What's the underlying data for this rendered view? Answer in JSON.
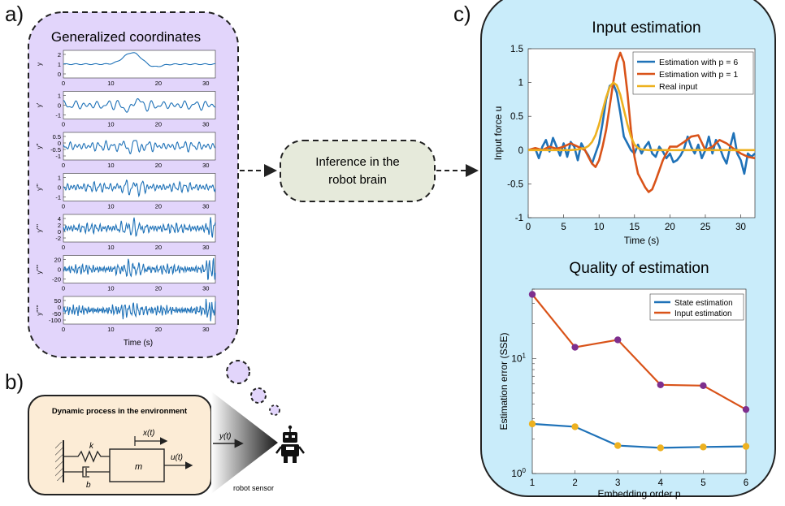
{
  "panel_labels": {
    "a": "a)",
    "b": "b)",
    "c": "c)"
  },
  "colors": {
    "lavender": "#e2d5fb",
    "beige": "#fcecd6",
    "sky": "#c9ecfa",
    "olive_box": "#e6eadb",
    "blue": "#1f72b8",
    "orange": "#d95319",
    "yellow": "#edb120",
    "purple": "#7e2f8e"
  },
  "panel_a": {
    "title": "Generalized coordinates",
    "xlabel": "Time (s)",
    "xticks": [
      "0",
      "10",
      "20",
      "30"
    ],
    "plots": [
      {
        "ylabel": "y",
        "yticks": [
          "2",
          "1",
          "0"
        ]
      },
      {
        "ylabel": "y'",
        "yticks": [
          "1",
          "0",
          "-1"
        ]
      },
      {
        "ylabel": "y''",
        "yticks": [
          "0.5",
          "0",
          "-0.5",
          "-1"
        ]
      },
      {
        "ylabel": "y'''",
        "yticks": [
          "1",
          "0",
          "-1"
        ]
      },
      {
        "ylabel": "y''''",
        "yticks": [
          "4",
          "2",
          "0",
          "-2"
        ]
      },
      {
        "ylabel": "y'''''",
        "yticks": [
          "20",
          "0",
          "-20"
        ]
      },
      {
        "ylabel": "y''''''",
        "yticks": [
          "50",
          "0",
          "-50",
          "-100"
        ]
      }
    ]
  },
  "inference_box": {
    "text_line1": "Inference in the",
    "text_line2": "robot brain"
  },
  "panel_b": {
    "title": "Dynamic process in the environment",
    "label_k": "k",
    "label_b": "b",
    "label_m": "m",
    "label_x": "x(t)",
    "label_u": "u(t)",
    "label_y": "y(t)",
    "sensor_label": "robot sensor"
  },
  "chart_data": [
    {
      "type": "line",
      "title": "Input estimation",
      "xlabel": "Time (s)",
      "ylabel": "Input force u",
      "xlim": [
        0,
        32
      ],
      "ylim": [
        -1,
        1.5
      ],
      "xticks": [
        0,
        5,
        10,
        15,
        20,
        25,
        30
      ],
      "yticks": [
        -1,
        -0.5,
        0,
        0.5,
        1,
        1.5
      ],
      "legend_position": "top-right",
      "series": [
        {
          "name": "Estimation with p = 6",
          "color": "#1f72b8",
          "x": [
            0,
            1,
            1.5,
            2,
            2.5,
            3,
            3.5,
            4,
            4.5,
            5,
            5.5,
            6,
            6.5,
            7,
            7.5,
            8,
            8.5,
            9,
            9.5,
            10,
            10.5,
            11,
            11.5,
            12,
            12.5,
            13,
            13.5,
            14,
            14.5,
            15,
            15.5,
            16,
            16.5,
            17,
            17.5,
            18,
            18.5,
            19,
            19.5,
            20,
            20.5,
            21,
            21.5,
            22,
            22.5,
            23,
            23.5,
            24,
            24.5,
            25,
            25.5,
            26,
            26.5,
            27,
            27.5,
            28,
            28.5,
            29,
            29.5,
            30,
            30.5,
            31,
            31.5,
            32
          ],
          "y": [
            0,
            0.02,
            -0.12,
            0.05,
            0.15,
            -0.02,
            0.18,
            0.05,
            -0.08,
            0.1,
            -0.1,
            0.12,
            0.05,
            -0.15,
            0.1,
            0.0,
            -0.08,
            -0.2,
            -0.05,
            0.1,
            0.4,
            0.75,
            0.95,
            0.98,
            0.85,
            0.55,
            0.2,
            0.1,
            0.0,
            -0.05,
            0.08,
            -0.05,
            0.05,
            0.12,
            -0.05,
            -0.1,
            0.05,
            -0.02,
            -0.12,
            -0.05,
            -0.18,
            -0.15,
            -0.08,
            0.02,
            0.2,
            0.05,
            -0.05,
            0.08,
            -0.12,
            0.0,
            0.2,
            -0.05,
            0.15,
            0.05,
            -0.1,
            -0.2,
            0.05,
            0.25,
            -0.05,
            -0.15,
            -0.35,
            -0.05,
            -0.1,
            -0.05
          ]
        },
        {
          "name": "Estimation with p = 1",
          "color": "#d95319",
          "x": [
            0,
            1,
            2,
            3,
            4,
            5,
            6,
            7,
            8,
            8.5,
            9,
            9.5,
            10,
            10.5,
            11,
            11.5,
            12,
            12.5,
            13,
            13.5,
            14,
            14.5,
            15,
            15.5,
            16,
            16.5,
            17,
            17.5,
            18,
            18.5,
            19,
            19.5,
            20,
            21,
            22,
            23,
            24,
            25,
            26,
            27,
            28,
            29,
            30,
            31,
            32
          ],
          "y": [
            0,
            0.03,
            0.0,
            0.05,
            0.02,
            0.05,
            0.1,
            0.05,
            0.0,
            -0.1,
            -0.2,
            -0.25,
            -0.15,
            0.05,
            0.3,
            0.65,
            1.0,
            1.3,
            1.44,
            1.3,
            0.85,
            0.3,
            -0.1,
            -0.35,
            -0.45,
            -0.55,
            -0.62,
            -0.58,
            -0.45,
            -0.3,
            -0.15,
            -0.05,
            0.05,
            0.05,
            0.12,
            0.2,
            0.22,
            0.0,
            0.05,
            0.15,
            0.1,
            0.02,
            -0.05,
            -0.1,
            -0.12
          ]
        },
        {
          "name": "Real input",
          "color": "#edb120",
          "x": [
            0,
            6,
            7,
            8,
            8.5,
            9,
            9.5,
            10,
            10.5,
            11,
            11.5,
            12,
            12.5,
            13,
            13.5,
            14,
            14.5,
            15,
            15.5,
            16,
            17,
            18,
            32
          ],
          "y": [
            0,
            0,
            0.01,
            0.03,
            0.06,
            0.12,
            0.22,
            0.38,
            0.58,
            0.78,
            0.93,
            1.0,
            0.96,
            0.82,
            0.6,
            0.38,
            0.2,
            0.08,
            0.03,
            0.01,
            0,
            0,
            0
          ]
        }
      ]
    },
    {
      "type": "line",
      "title": "Quality of estimation",
      "xlabel": "Embedding order p",
      "ylabel": "Estimation error (SSE)",
      "yscale": "log",
      "xlim": [
        1,
        6
      ],
      "ylim": [
        1,
        40
      ],
      "xticks": [
        1,
        2,
        3,
        4,
        5,
        6
      ],
      "yticks_labels": [
        "10^0",
        "10^1"
      ],
      "legend_position": "top-right",
      "series": [
        {
          "name": "State estimation",
          "color": "#1f72b8",
          "marker_color": "#edb120",
          "x": [
            1,
            2,
            3,
            4,
            5,
            6
          ],
          "y": [
            2.7,
            2.55,
            1.75,
            1.67,
            1.7,
            1.72
          ]
        },
        {
          "name": "Input estimation",
          "color": "#d95319",
          "marker_color": "#7e2f8e",
          "x": [
            1,
            2,
            3,
            4,
            5,
            6
          ],
          "y": [
            36,
            12.5,
            14.5,
            5.9,
            5.8,
            3.6
          ]
        }
      ]
    }
  ]
}
